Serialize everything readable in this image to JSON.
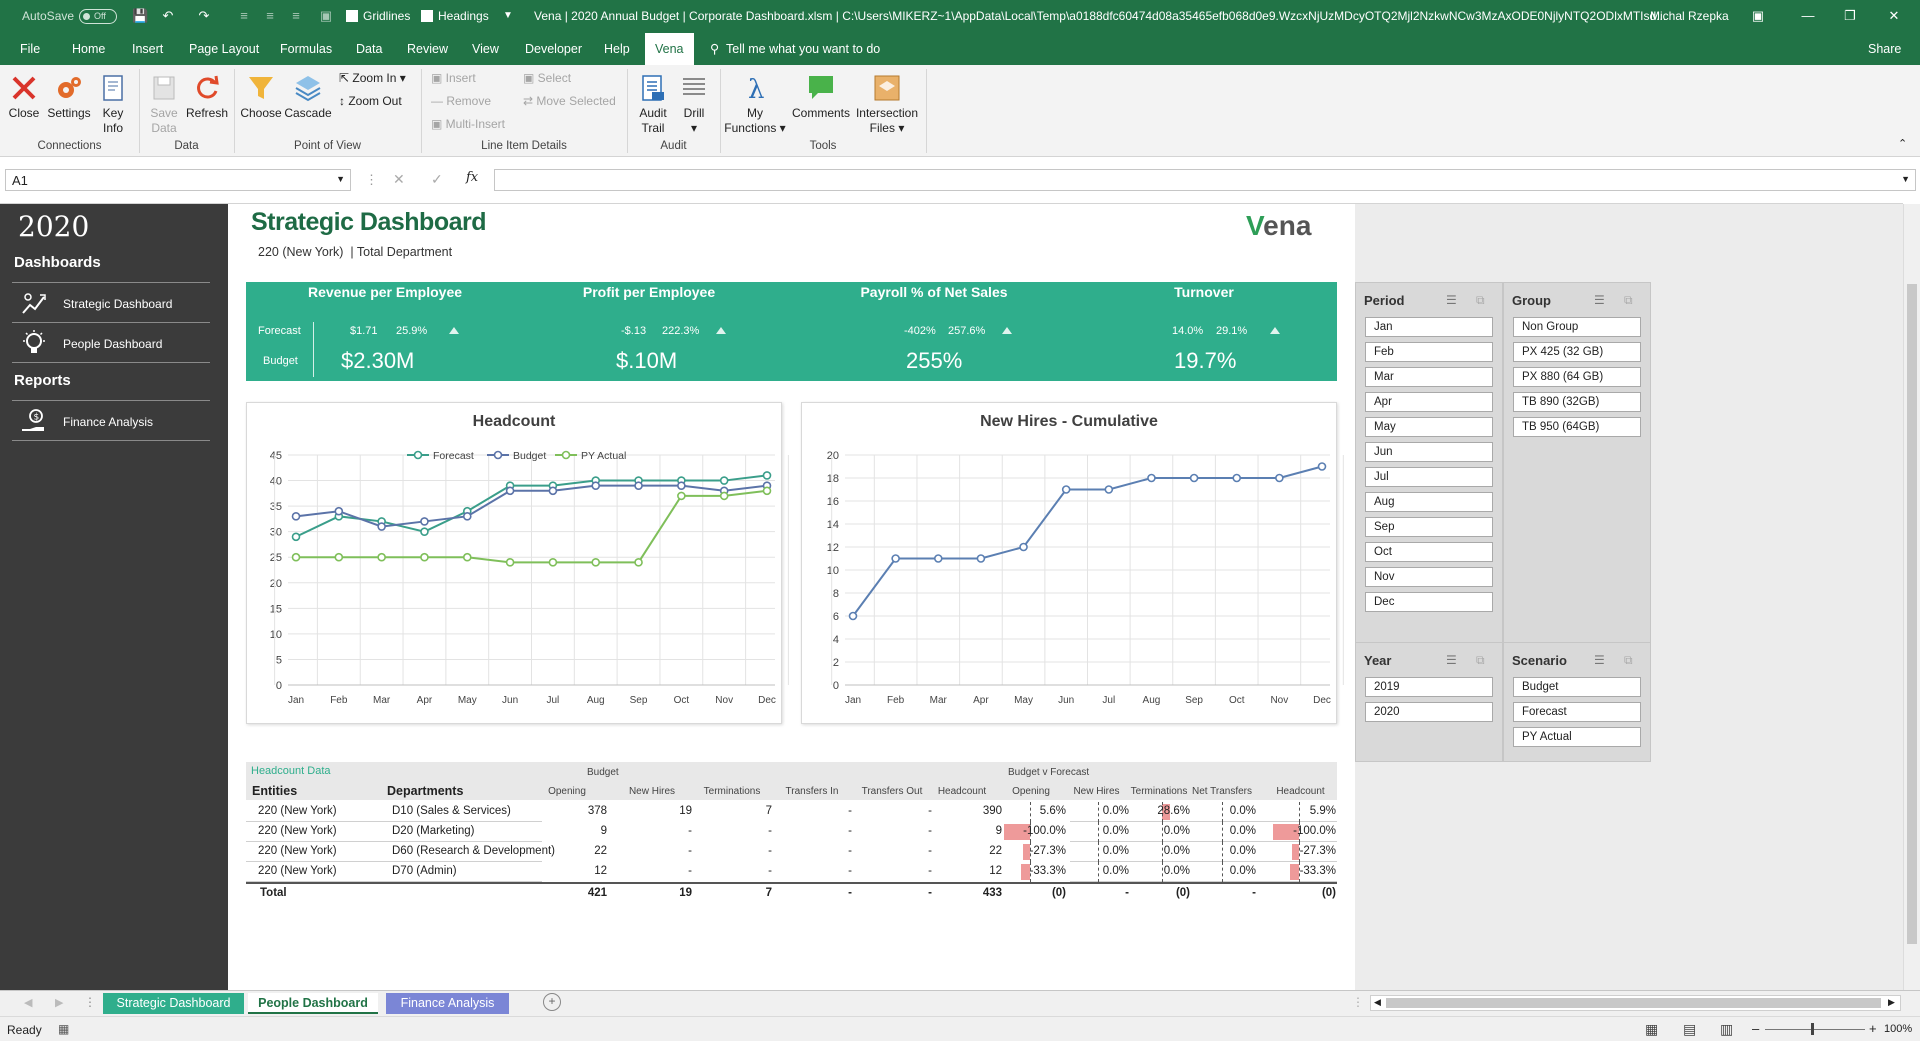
{
  "titlebar": {
    "autosave_label": "AutoSave",
    "autosave_state": "Off",
    "gridlines_label": "Gridlines",
    "headings_label": "Headings",
    "doc_title": "Vena | 2020 Annual Budget | Corporate Dashboard.xlsm | C:\\Users\\MIKERZ~1\\AppData\\Local\\Temp\\a0188dfc60474d08a35465efb068d0e9.WzcxNjUzMDcyOTQ2Mjl2NzkwNCw3MzAxODE0NjlyNTQ2ODlxMTIsd...",
    "user": "Michal Rzepka"
  },
  "ribbon_tabs": [
    "File",
    "Home",
    "Insert",
    "Page Layout",
    "Formulas",
    "Data",
    "Review",
    "View",
    "Developer",
    "Help",
    "Vena"
  ],
  "tell_me": "Tell me what you want to do",
  "share_label": "Share",
  "ribbon": {
    "close": "Close",
    "settings": "Settings",
    "key": "Key",
    "info": "Info",
    "save": "Save",
    "data_lbl": "Data",
    "refresh": "Refresh",
    "choose": "Choose",
    "cascade": "Cascade",
    "zoom_in": "Zoom In",
    "zoom_out": "Zoom Out",
    "insert": "Insert",
    "remove": "Remove",
    "multi_insert": "Multi-Insert",
    "select": "Select",
    "move_selected": "Move Selected",
    "audit": "Audit",
    "trail": "Trail",
    "drill": "Drill",
    "my": "My",
    "functions": "Functions",
    "comments": "Comments",
    "intersection": "Intersection",
    "files": "Files",
    "groups": {
      "connections": "Connections",
      "data": "Data",
      "pov": "Point of View",
      "lid": "Line Item Details",
      "audit": "Audit",
      "tools": "Tools"
    }
  },
  "formula": {
    "namebox": "A1",
    "fx": "fx",
    "value": ""
  },
  "sidebar": {
    "year": "2020",
    "dashboards_heading": "Dashboards",
    "items": [
      {
        "label": "Strategic Dashboard",
        "icon": "strategy-icon"
      },
      {
        "label": "People Dashboard",
        "icon": "lightbulb-icon"
      }
    ],
    "reports_heading": "Reports",
    "report_items": [
      {
        "label": "Finance Analysis",
        "icon": "money-hand-icon"
      }
    ]
  },
  "header": {
    "title": "Strategic Dashboard",
    "entity": "220 (New York)",
    "separator": "|",
    "department": "Total Department",
    "logo": "Vena"
  },
  "kpis": {
    "row_forecast": "Forecast",
    "row_budget": "Budget",
    "items": [
      {
        "title": "Revenue per Employee",
        "forecast": "$1.71",
        "change": "25.9%",
        "budget": "$2.30M"
      },
      {
        "title": "Profit per Employee",
        "forecast": "-$.13",
        "change": "222.3%",
        "budget": "$.10M"
      },
      {
        "title": "Payroll % of Net Sales",
        "forecast": "-402%",
        "change": "257.6%",
        "budget": "255%"
      },
      {
        "title": "Turnover",
        "forecast": "14.0%",
        "change": "29.1%",
        "budget": "19.7%"
      }
    ]
  },
  "chart_data": [
    {
      "type": "line",
      "title": "Headcount",
      "categories": [
        "Jan",
        "Feb",
        "Mar",
        "Apr",
        "May",
        "Jun",
        "Jul",
        "Aug",
        "Sep",
        "Oct",
        "Nov",
        "Dec"
      ],
      "ylim": [
        0,
        45
      ],
      "yticks": [
        0,
        5,
        10,
        15,
        20,
        25,
        30,
        35,
        40,
        45
      ],
      "grid": true,
      "legend": "top",
      "series": [
        {
          "name": "Forecast",
          "color": "#3a9e8a",
          "values": [
            29,
            33,
            32,
            30,
            34,
            39,
            39,
            40,
            40,
            40,
            40,
            41
          ]
        },
        {
          "name": "Budget",
          "color": "#5b73a8",
          "values": [
            33,
            34,
            31,
            32,
            33,
            38,
            38,
            39,
            39,
            39,
            38,
            39
          ]
        },
        {
          "name": "PY Actual",
          "color": "#7fbf5a",
          "values": [
            25,
            25,
            25,
            25,
            25,
            24,
            24,
            24,
            24,
            37,
            37,
            38
          ]
        }
      ]
    },
    {
      "type": "line",
      "title": "New Hires - Cumulative",
      "categories": [
        "Jan",
        "Feb",
        "Mar",
        "Apr",
        "May",
        "Jun",
        "Jul",
        "Aug",
        "Sep",
        "Oct",
        "Nov",
        "Dec"
      ],
      "ylim": [
        0,
        20
      ],
      "yticks": [
        0,
        2,
        4,
        6,
        8,
        10,
        12,
        14,
        16,
        18,
        20
      ],
      "grid": true,
      "series": [
        {
          "color": "#5b7fb2",
          "values": [
            6,
            11,
            11,
            11,
            12,
            17,
            17,
            18,
            18,
            18,
            18,
            19
          ]
        }
      ]
    }
  ],
  "slicers": {
    "period": {
      "title": "Period",
      "items": [
        "Jan",
        "Feb",
        "Mar",
        "Apr",
        "May",
        "Jun",
        "Jul",
        "Aug",
        "Sep",
        "Oct",
        "Nov",
        "Dec"
      ]
    },
    "group": {
      "title": "Group",
      "items": [
        "Non Group",
        "PX 425 (32 GB)",
        "PX 880 (64 GB)",
        "TB 890 (32GB)",
        "TB 950 (64GB)"
      ]
    },
    "year": {
      "title": "Year",
      "items": [
        "2019",
        "2020"
      ]
    },
    "scenario": {
      "title": "Scenario",
      "items": [
        "Budget",
        "Forecast",
        "PY Actual"
      ]
    }
  },
  "table": {
    "caption": "Headcount Data",
    "budget_label": "Budget",
    "bvf_label": "Budget v Forecast",
    "col_entities": "Entities",
    "col_departments": "Departments",
    "budget_cols": [
      "Opening",
      "New Hires",
      "Terminations",
      "Transfers In",
      "Transfers Out",
      "Headcount"
    ],
    "bvf_cols": [
      "Opening",
      "New Hires",
      "Terminations",
      "Net Transfers",
      "Headcount"
    ],
    "rows": [
      {
        "entity": "220 (New York)",
        "dept": "D10 (Sales & Services)",
        "budget": [
          "378",
          "19",
          "7",
          "-",
          "-",
          "390"
        ],
        "bvf": [
          "5.6%",
          "0.0%",
          "28.6%",
          "0.0%",
          "5.9%"
        ],
        "bars": [
          0,
          0,
          0.29,
          0,
          0
        ]
      },
      {
        "entity": "220 (New York)",
        "dept": "D20 (Marketing)",
        "budget": [
          "9",
          "-",
          "-",
          "-",
          "-",
          "9"
        ],
        "bvf": [
          "-100.0%",
          "0.0%",
          "0.0%",
          "0.0%",
          "-100.0%"
        ],
        "bars": [
          -1,
          0,
          0,
          0,
          -1
        ]
      },
      {
        "entity": "220 (New York)",
        "dept": "D60 (Research & Development)",
        "budget": [
          "22",
          "-",
          "-",
          "-",
          "-",
          "22"
        ],
        "bvf": [
          "-27.3%",
          "0.0%",
          "0.0%",
          "0.0%",
          "-27.3%"
        ],
        "bars": [
          -0.27,
          0,
          0,
          0,
          -0.27
        ]
      },
      {
        "entity": "220 (New York)",
        "dept": "D70 (Admin)",
        "budget": [
          "12",
          "-",
          "-",
          "-",
          "-",
          "12"
        ],
        "bvf": [
          "-33.3%",
          "0.0%",
          "0.0%",
          "0.0%",
          "-33.3%"
        ],
        "bars": [
          -0.33,
          0,
          0,
          0,
          -0.33
        ]
      }
    ],
    "total": {
      "label": "Total",
      "budget": [
        "421",
        "19",
        "7",
        "-",
        "-",
        "433"
      ],
      "bvf": [
        "(0)",
        "-",
        "(0)",
        "-",
        "(0)"
      ]
    }
  },
  "sheet_tabs": [
    {
      "label": "Strategic Dashboard",
      "bg": "#2fae8c",
      "fg": "#fff"
    },
    {
      "label": "People Dashboard",
      "bg": "#ffffff",
      "fg": "#217346"
    },
    {
      "label": "Finance Analysis",
      "bg": "#7b86d6",
      "fg": "#fff"
    }
  ],
  "status": {
    "ready": "Ready",
    "zoom": "100%"
  }
}
